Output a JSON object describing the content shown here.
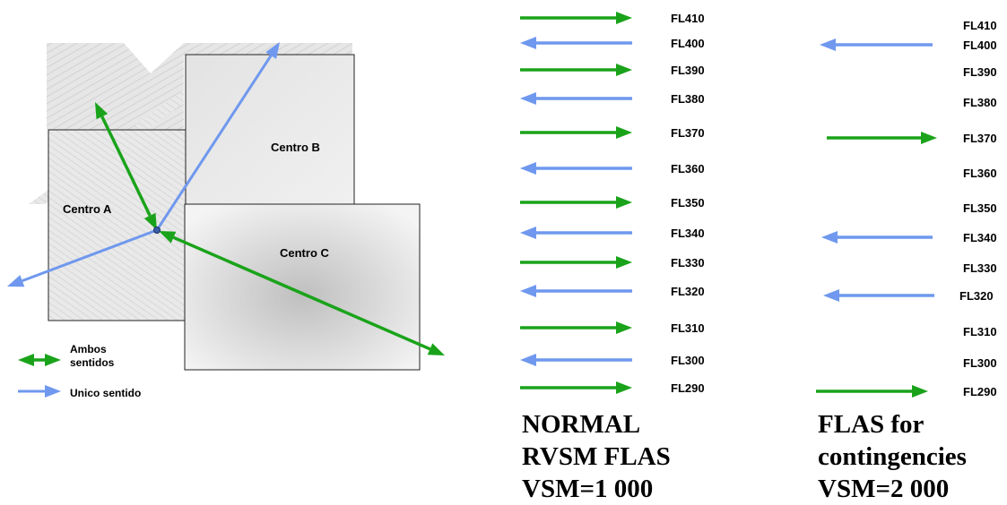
{
  "sectors": {
    "a": "Centro A",
    "b": "Centro B",
    "c": "Centro C"
  },
  "legend": {
    "both": [
      "Ambos",
      "sentidos"
    ],
    "single": "Unico sentido"
  },
  "colors": {
    "green": "#1aa31a",
    "blue": "#6f98ee"
  },
  "normal": {
    "levels": [
      {
        "fl": "FL410",
        "dir": "right"
      },
      {
        "fl": "FL400",
        "dir": "left"
      },
      {
        "fl": "FL390",
        "dir": "right"
      },
      {
        "fl": "FL380",
        "dir": "left"
      },
      {
        "fl": "FL370",
        "dir": "right"
      },
      {
        "fl": "FL360",
        "dir": "left"
      },
      {
        "fl": "FL350",
        "dir": "right"
      },
      {
        "fl": "FL340",
        "dir": "left"
      },
      {
        "fl": "FL330",
        "dir": "right"
      },
      {
        "fl": "FL320",
        "dir": "left"
      },
      {
        "fl": "FL310",
        "dir": "right"
      },
      {
        "fl": "FL300",
        "dir": "left"
      },
      {
        "fl": "FL290",
        "dir": "right"
      }
    ],
    "caption": [
      "NORMAL",
      "RVSM FLAS",
      "VSM=1 000"
    ]
  },
  "contingency": {
    "levels": [
      {
        "fl": "FL410",
        "dir": ""
      },
      {
        "fl": "FL400",
        "dir": "left"
      },
      {
        "fl": "FL390",
        "dir": ""
      },
      {
        "fl": "FL380",
        "dir": ""
      },
      {
        "fl": "FL370",
        "dir": "right"
      },
      {
        "fl": "FL360",
        "dir": ""
      },
      {
        "fl": "FL350",
        "dir": ""
      },
      {
        "fl": "FL340",
        "dir": "left"
      },
      {
        "fl": "FL330",
        "dir": ""
      },
      {
        "fl": "FL320",
        "dir": "left"
      },
      {
        "fl": "FL310",
        "dir": ""
      },
      {
        "fl": "FL300",
        "dir": ""
      },
      {
        "fl": "FL290",
        "dir": "right"
      }
    ],
    "caption": [
      "FLAS for",
      "contingencies",
      "VSM=2 000"
    ]
  }
}
